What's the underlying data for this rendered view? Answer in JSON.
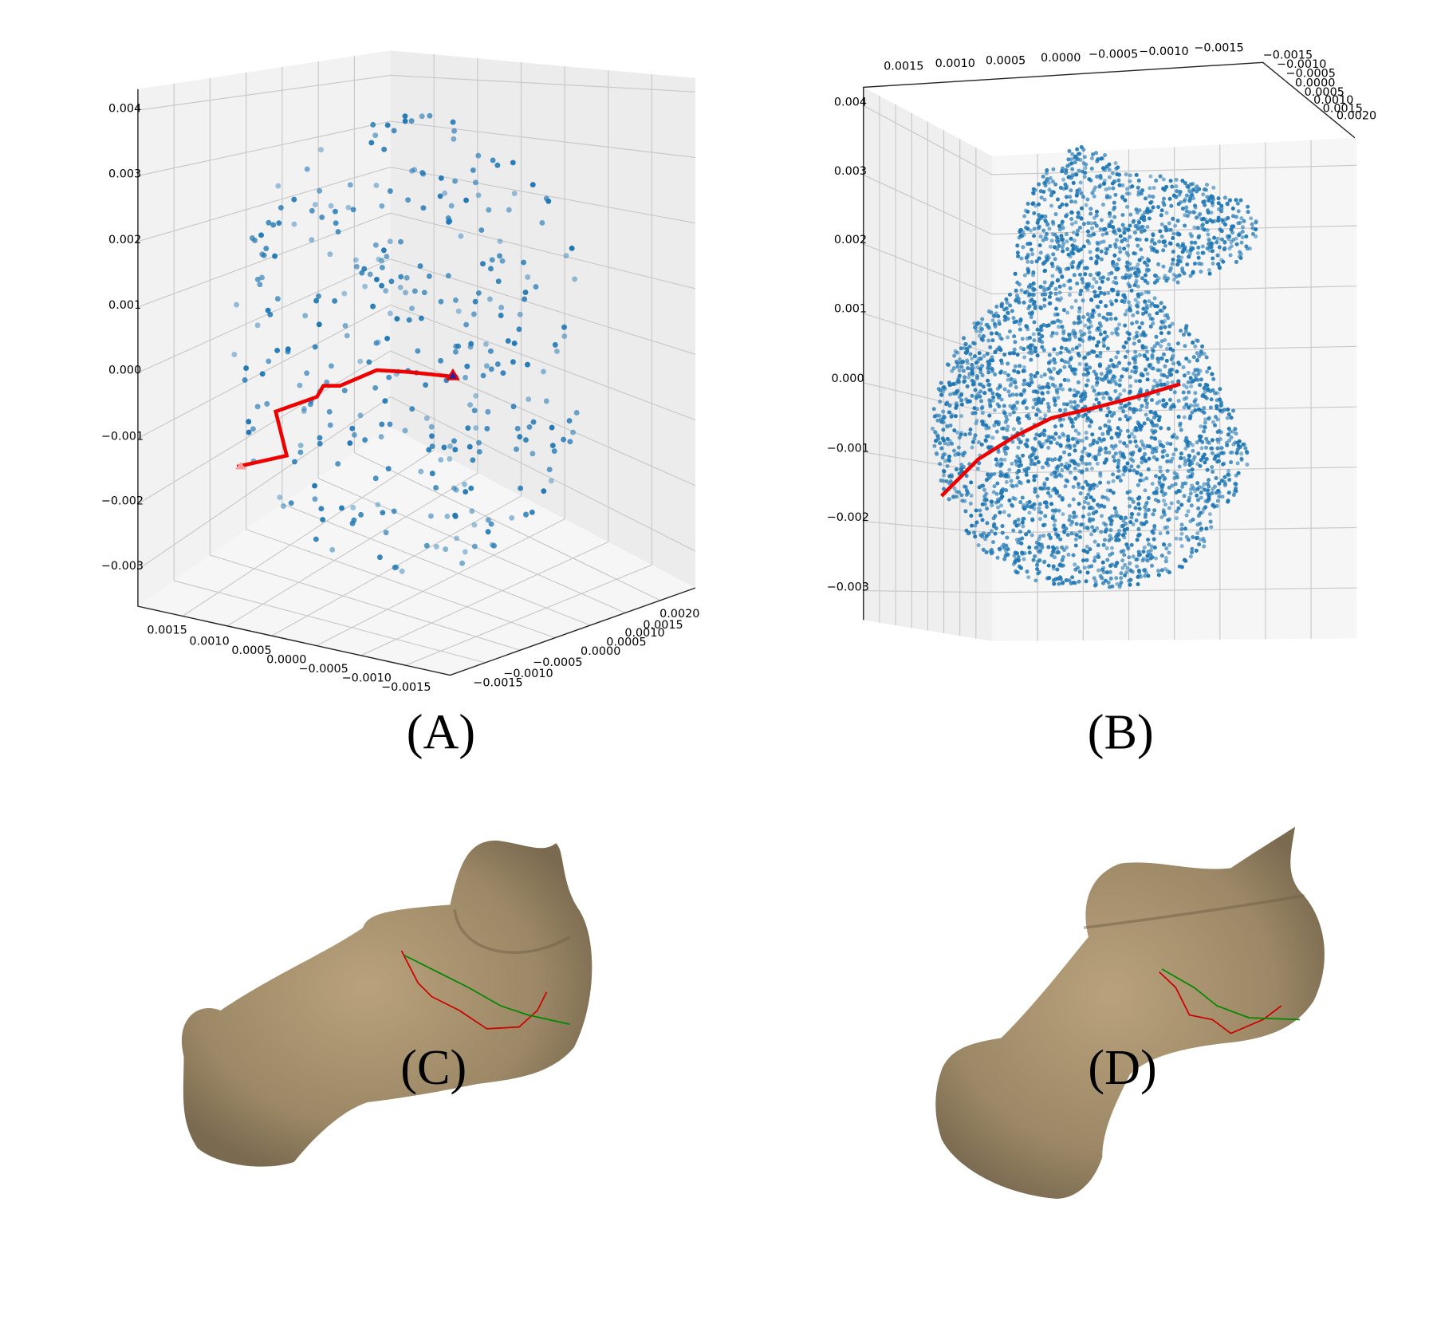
{
  "panels": [
    {
      "label": "(A)",
      "z_ticks": [
        "0.004",
        "0.003",
        "0.002",
        "0.001",
        "0.000",
        "−0.001",
        "−0.002",
        "−0.003"
      ],
      "x_ticks": [
        "0.0015",
        "0.0010",
        "0.0005",
        "0.0000",
        "−0.0005",
        "−0.0010",
        "−0.0015"
      ],
      "y_ticks": [
        "0.0020",
        "0.0015",
        "0.0010",
        "0.0005",
        "0.0000",
        "−0.0005",
        "−0.0010",
        "−0.0015"
      ]
    },
    {
      "label": "(B)",
      "z_ticks": [
        "0.004",
        "0.003",
        "0.002",
        "0.001",
        "0.000",
        "−0.001",
        "−0.002",
        "−0.003"
      ],
      "x_ticks": [
        "0.0015",
        "0.0010",
        "0.0005",
        "0.0000",
        "−0.0005",
        "−0.0010",
        "−0.0015"
      ],
      "y_ticks": [
        "−0.0015",
        "−0.0010",
        "−0.0005",
        "0.0000",
        "0.0005",
        "0.0010",
        "0.0015",
        "0.0020"
      ]
    },
    {
      "label": "(C)"
    },
    {
      "label": "(D)"
    }
  ]
}
